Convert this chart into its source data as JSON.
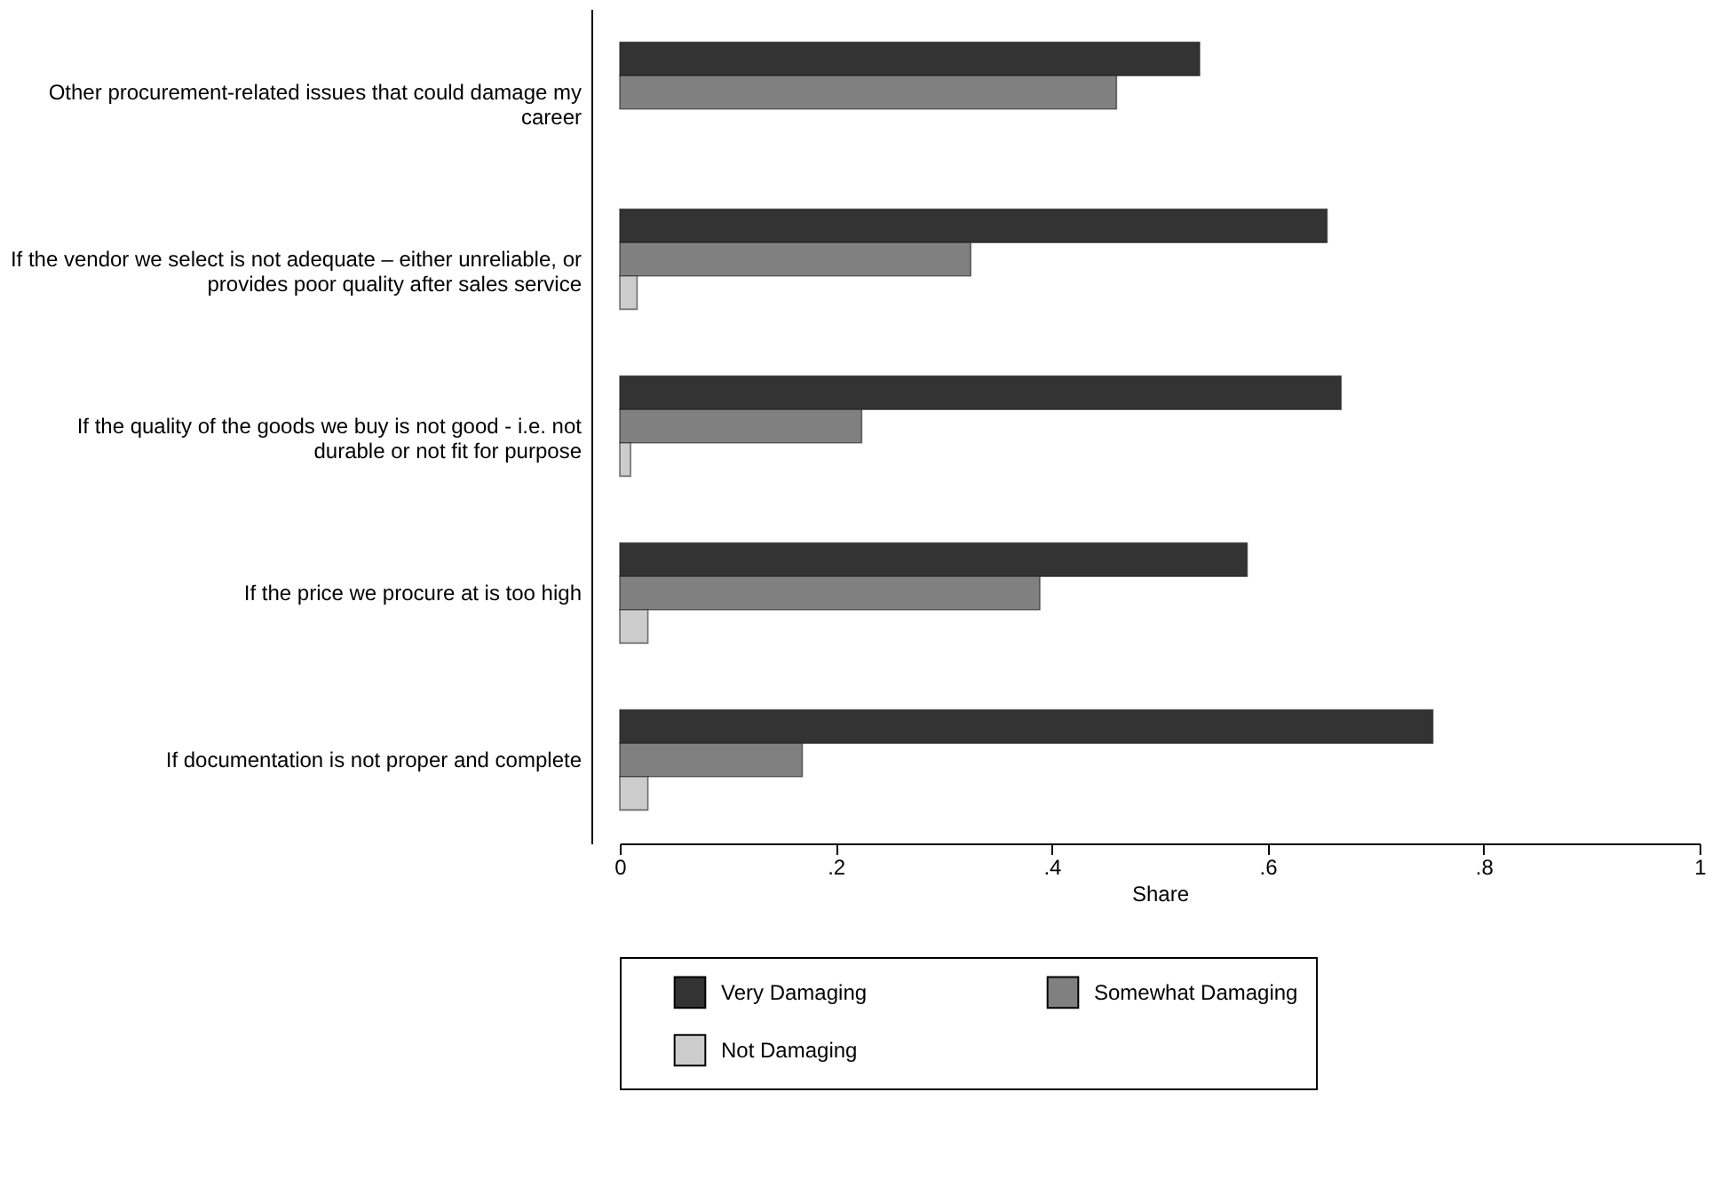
{
  "chart_data": {
    "type": "bar",
    "orientation": "horizontal",
    "xlabel": "Share",
    "categories": [
      "Other procurement-related issues that could damage my career",
      "If the vendor we select is not adequate – either unreliable, or provides poor quality after sales service",
      "If the quality of the goods we buy is not good - i.e. not durable or not fit for purpose",
      "If the price we procure at is too high",
      "If documentation is not proper and complete"
    ],
    "series": [
      {
        "name": "Very Damaging",
        "color": "#333333",
        "values": [
          0.537,
          0.655,
          0.668,
          0.581,
          0.753
        ]
      },
      {
        "name": "Somewhat Damaging",
        "color": "#808080",
        "values": [
          0.46,
          0.325,
          0.224,
          0.389,
          0.169
        ]
      },
      {
        "name": "Not Damaging",
        "color": "#cccccc",
        "values": [
          null,
          0.016,
          0.01,
          0.026,
          0.026
        ]
      }
    ],
    "xlim": [
      0,
      1
    ],
    "xticks": [
      {
        "value": 0,
        "label": "0"
      },
      {
        "value": 0.2,
        "label": ".2"
      },
      {
        "value": 0.4,
        "label": ".4"
      },
      {
        "value": 0.6,
        "label": ".6"
      },
      {
        "value": 0.8,
        "label": ".8"
      },
      {
        "value": 1,
        "label": "1"
      }
    ],
    "grid": false,
    "legend": "bottom"
  }
}
